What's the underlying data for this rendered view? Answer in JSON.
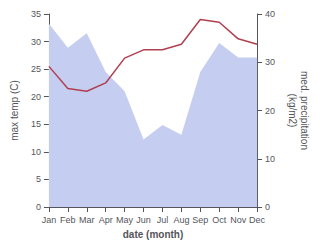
{
  "chart_data": {
    "type": "line",
    "categories": [
      "Jan",
      "Feb",
      "Mar",
      "Apr",
      "May",
      "Jun",
      "Jul",
      "Aug",
      "Sep",
      "Oct",
      "Nov",
      "Dec"
    ],
    "xlabel": "date (month)",
    "ylabel": "max temp (C)",
    "y2label": "med. precipitation\n(kg/m2)",
    "series": [
      {
        "type": "area",
        "color": "#c5cdf0",
        "axis": "y2",
        "values": [
          38,
          33,
          36,
          28,
          24,
          14,
          17,
          15,
          28,
          34,
          31,
          31
        ]
      },
      {
        "type": "line",
        "color": "#b04050",
        "values": [
          25.5,
          21.5,
          21.0,
          22.5,
          27.0,
          28.5,
          28.5,
          29.5,
          34.0,
          33.5,
          30.5,
          29.5
        ]
      }
    ],
    "ylim": [
      0,
      35
    ],
    "yticks": [
      0,
      5,
      10,
      15,
      20,
      25,
      30,
      35
    ],
    "y2lim": [
      0,
      40
    ],
    "y2ticks": [
      0,
      10,
      20,
      30,
      40
    ],
    "grid": false
  }
}
